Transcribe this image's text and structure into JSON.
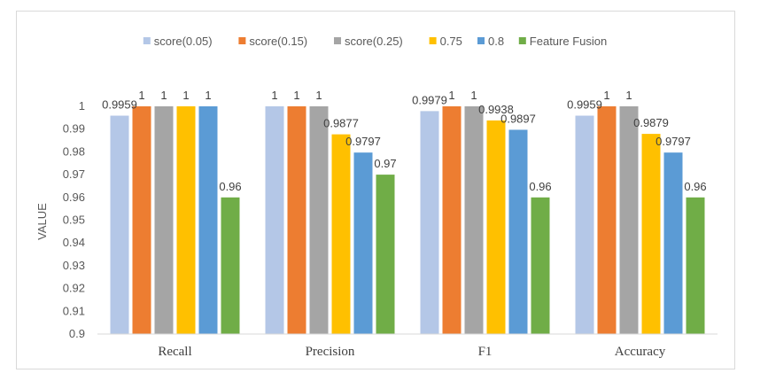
{
  "chart_data": {
    "type": "bar",
    "title": "",
    "xlabel": "",
    "ylabel": "VALUE",
    "ylim": [
      0.9,
      1.0
    ],
    "yticks": [
      0.9,
      0.91,
      0.92,
      0.93,
      0.94,
      0.95,
      0.96,
      0.97,
      0.98,
      0.99,
      1
    ],
    "ytick_labels": [
      "0.9",
      "0.91",
      "0.92",
      "0.93",
      "0.94",
      "0.95",
      "0.96",
      "0.97",
      "0.98",
      "0.99",
      "1"
    ],
    "grid": false,
    "legend_position": "top",
    "categories": [
      "Recall",
      "Precision",
      "F1",
      "Accuracy"
    ],
    "series": [
      {
        "name": "score(0.05)",
        "color": "#b4c7e7",
        "values": [
          0.9959,
          1,
          0.9979,
          0.9959
        ],
        "labels": [
          "0.9959",
          "1",
          "0.9979",
          "0.9959"
        ]
      },
      {
        "name": "score(0.15)",
        "color": "#ed7d31",
        "values": [
          1,
          1,
          1,
          1
        ],
        "labels": [
          "1",
          "1",
          "1",
          "1"
        ]
      },
      {
        "name": "score(0.25)",
        "color": "#a5a5a5",
        "values": [
          1,
          1,
          1,
          1
        ],
        "labels": [
          "1",
          "1",
          "1",
          "1"
        ]
      },
      {
        "name": "0.75",
        "color": "#ffc000",
        "values": [
          1,
          0.9877,
          0.9938,
          0.9879
        ],
        "labels": [
          "1",
          "0.9877",
          "0.9938",
          "0.9879"
        ]
      },
      {
        "name": "0.8",
        "color": "#5b9bd5",
        "values": [
          1,
          0.9797,
          0.9897,
          0.9797
        ],
        "labels": [
          "1",
          "0.9797",
          "0.9897",
          "0.9797"
        ]
      },
      {
        "name": "Feature Fusion",
        "color": "#70ad47",
        "values": [
          0.96,
          0.97,
          0.96,
          0.96
        ],
        "labels": [
          "0.96",
          "0.97",
          "0.96",
          "0.96"
        ]
      }
    ]
  }
}
